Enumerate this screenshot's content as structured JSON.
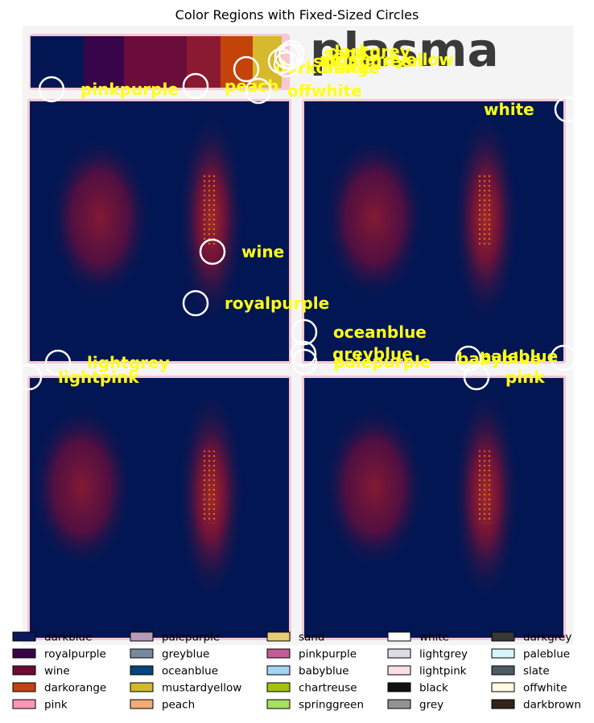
{
  "chart_data": {
    "type": "image_annotation",
    "title": "Color Regions with Fixed-Sized Circles",
    "background_image": {
      "colormap": "plasma",
      "watermark_text": "plasma",
      "panels": 4,
      "colorbar_colors": [
        "#021653",
        "#38044a",
        "#6b0d3b",
        "#8a1a32",
        "#c4430b",
        "#d6b92c"
      ]
    },
    "annotations": [
      {
        "label": "pinkpurple"
      },
      {
        "label": "peach"
      },
      {
        "label": "offwhite"
      },
      {
        "label": "darkorange"
      },
      {
        "label": "springgreen"
      },
      {
        "label": "mustardyellow"
      },
      {
        "label": "sand"
      },
      {
        "label": "black"
      },
      {
        "label": "darkgrey"
      },
      {
        "label": "white"
      },
      {
        "label": "wine"
      },
      {
        "label": "royalpurple"
      },
      {
        "label": "oceanblue"
      },
      {
        "label": "greyblue"
      },
      {
        "label": "palepurple"
      },
      {
        "label": "lightgrey"
      },
      {
        "label": "lightpink"
      },
      {
        "label": "babyblue"
      },
      {
        "label": "paleblue"
      },
      {
        "label": "pink"
      }
    ],
    "legend": [
      {
        "name": "darkblue",
        "color": "#0a1a5c"
      },
      {
        "name": "royalpurple",
        "color": "#3c0448"
      },
      {
        "name": "wine",
        "color": "#6e0c34"
      },
      {
        "name": "darkorange",
        "color": "#bf4410"
      },
      {
        "name": "pink",
        "color": "#ff96b4"
      },
      {
        "name": "palepurple",
        "color": "#b79ab8"
      },
      {
        "name": "greyblue",
        "color": "#77899f"
      },
      {
        "name": "oceanblue",
        "color": "#05477a"
      },
      {
        "name": "mustardyellow",
        "color": "#d0b92e"
      },
      {
        "name": "peach",
        "color": "#f5aa78"
      },
      {
        "name": "sand",
        "color": "#e7cc78"
      },
      {
        "name": "pinkpurple",
        "color": "#c25b96"
      },
      {
        "name": "babyblue",
        "color": "#a6d3f1"
      },
      {
        "name": "chartreuse",
        "color": "#a3c113"
      },
      {
        "name": "springgreen",
        "color": "#a8e060"
      },
      {
        "name": "white",
        "color": "#ffffff"
      },
      {
        "name": "lightgrey",
        "color": "#dedde3"
      },
      {
        "name": "lightpink",
        "color": "#fbdfe1"
      },
      {
        "name": "black",
        "color": "#111111"
      },
      {
        "name": "grey",
        "color": "#929292"
      },
      {
        "name": "darkgrey",
        "color": "#363737"
      },
      {
        "name": "paleblue",
        "color": "#d8f5fb"
      },
      {
        "name": "slate",
        "color": "#505a63"
      },
      {
        "name": "offwhite",
        "color": "#fffbe1"
      },
      {
        "name": "darkbrown",
        "color": "#33231a"
      }
    ],
    "legend_columns": 5,
    "legend_placement": "bottom"
  }
}
